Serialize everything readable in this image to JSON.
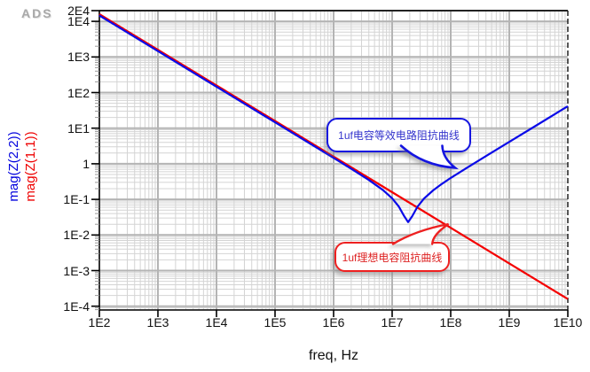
{
  "logo": "ADS",
  "axes": {
    "x_label": "freq, Hz",
    "y_label_blue": "mag(Z(2,2))",
    "y_label_red": "mag(Z(1,1))"
  },
  "callouts": {
    "blue": {
      "text": "1uf电容等效电路阻抗曲线"
    },
    "red": {
      "text": "1uf理想电容阻抗曲线"
    }
  },
  "chart_data": {
    "type": "line",
    "xlabel": "freq, Hz",
    "x_scale": "log",
    "y_scale": "log",
    "xlim": [
      100.0,
      10000000000.0
    ],
    "ylim": [
      8e-05,
      20000.0
    ],
    "grid": true,
    "x_ticks": [
      {
        "label": "1E2",
        "value": 100.0
      },
      {
        "label": "1E3",
        "value": 1000.0
      },
      {
        "label": "1E4",
        "value": 10000.0
      },
      {
        "label": "1E5",
        "value": 100000.0
      },
      {
        "label": "1E6",
        "value": 1000000.0
      },
      {
        "label": "1E7",
        "value": 10000000.0
      },
      {
        "label": "1E8",
        "value": 100000000.0
      },
      {
        "label": "1E9",
        "value": 1000000000.0
      },
      {
        "label": "1E10",
        "value": 10000000000.0
      }
    ],
    "y_ticks": [
      {
        "label": "2E4",
        "value": 20000.0
      },
      {
        "label": "1E4",
        "value": 10000.0
      },
      {
        "label": "1E3",
        "value": 1000.0
      },
      {
        "label": "1E2",
        "value": 100.0
      },
      {
        "label": "1E1",
        "value": 10.0
      },
      {
        "label": "1",
        "value": 1
      },
      {
        "label": "1E-1",
        "value": 0.1
      },
      {
        "label": "1E-2",
        "value": 0.01
      },
      {
        "label": "1E-3",
        "value": 0.001
      },
      {
        "label": "1E-4",
        "value": 0.0001
      }
    ],
    "series": [
      {
        "name": "mag(Z(1,1))",
        "label": "1uf理想电容阻抗曲线",
        "color": "#f40000",
        "points": [
          [
            100.0,
            15915
          ],
          [
            1000.0,
            1591.5
          ],
          [
            10000.0,
            159.15
          ],
          [
            100000.0,
            15.915
          ],
          [
            1000000.0,
            1.5915
          ],
          [
            10000000.0,
            0.15915
          ],
          [
            100000000.0,
            0.015915
          ],
          [
            1000000000.0,
            0.0015915
          ],
          [
            10000000000.0,
            0.00015915
          ]
        ]
      },
      {
        "name": "mag(Z(2,2))",
        "label": "1uf电容等效电路阻抗曲线",
        "color": "#0a0ae8",
        "points": [
          [
            100.0,
            15915
          ],
          [
            1000.0,
            1591.5
          ],
          [
            10000.0,
            159.15
          ],
          [
            100000.0,
            15.915
          ],
          [
            1000000.0,
            1.587
          ],
          [
            2000000.0,
            0.787
          ],
          [
            4000000.0,
            0.381
          ],
          [
            7000000.0,
            0.1975
          ],
          [
            10000000.0,
            0.1168
          ],
          [
            13000000.0,
            0.0686
          ],
          [
            16000000.0,
            0.0372
          ],
          [
            18750000.0,
            0.025
          ],
          [
            22000000.0,
            0.0366
          ],
          [
            27000000.0,
            0.0674
          ],
          [
            35000000.0,
            0.115
          ],
          [
            50000000.0,
            0.1948
          ],
          [
            70000000.0,
            0.2934
          ],
          [
            100000000.0,
            0.4355
          ],
          [
            200000000.0,
            0.892
          ],
          [
            500000000.0,
            2.247
          ],
          [
            1000000000.0,
            4.498
          ],
          [
            3000000000.0,
            13.5
          ],
          [
            10000000000.0,
            45.0
          ]
        ]
      }
    ]
  }
}
